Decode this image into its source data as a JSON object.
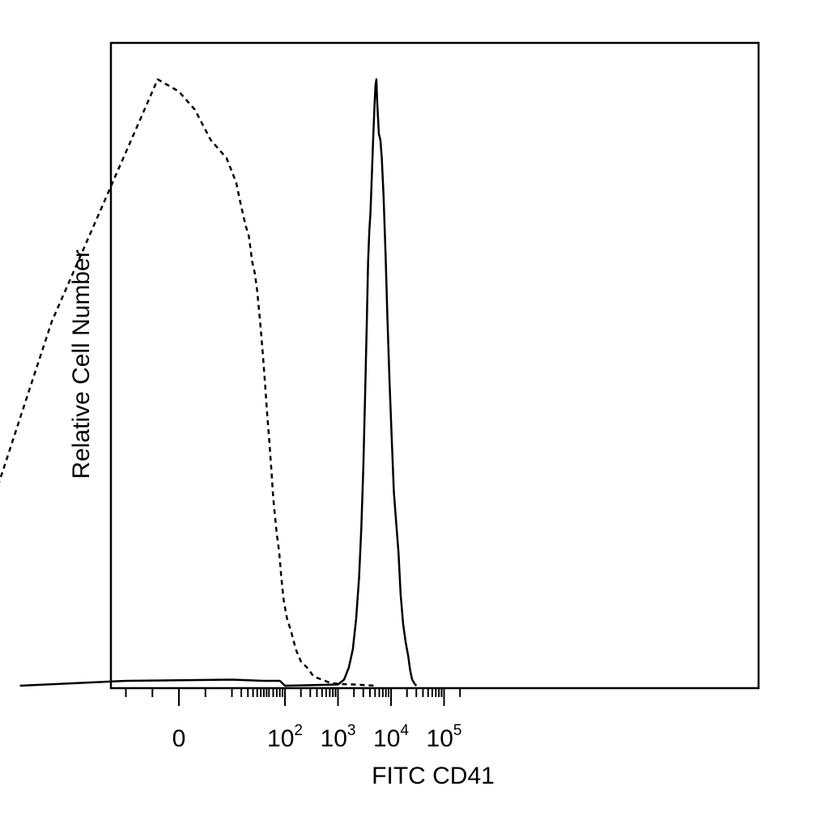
{
  "chart_data": {
    "type": "line",
    "title": "",
    "xlabel": "FITC CD41",
    "ylabel": "Relative Cell Number",
    "x_scale": "biexponential",
    "xlim": [
      -50,
      250000
    ],
    "ylim": [
      0,
      1
    ],
    "grid": false,
    "legend": "none",
    "major_ticks": [
      {
        "value": 0,
        "base": "0",
        "exp": ""
      },
      {
        "value": 100,
        "base": "10",
        "exp": "2"
      },
      {
        "value": 1000,
        "base": "10",
        "exp": "3"
      },
      {
        "value": 10000,
        "base": "10",
        "exp": "4"
      },
      {
        "value": 100000,
        "base": "10",
        "exp": "5"
      }
    ],
    "minor_ticks": [
      -45,
      -40,
      -35,
      -30,
      -25,
      -20,
      -15,
      -10,
      -5,
      5,
      10,
      15,
      20,
      25,
      30,
      35,
      40,
      45,
      50,
      60,
      70,
      80,
      90,
      200,
      300,
      400,
      500,
      600,
      700,
      800,
      900,
      2000,
      3000,
      4000,
      5000,
      6000,
      7000,
      8000,
      9000,
      20000,
      30000,
      40000,
      50000,
      60000,
      70000,
      80000,
      90000,
      200000
    ],
    "series": [
      {
        "style": "dashed",
        "color": "#000000",
        "points": [
          [
            -48,
            0.0
          ],
          [
            -45,
            0.05
          ],
          [
            -42,
            0.12
          ],
          [
            -39,
            0.2
          ],
          [
            -36,
            0.28
          ],
          [
            -33,
            0.36
          ],
          [
            -30,
            0.44
          ],
          [
            -27,
            0.52
          ],
          [
            -24,
            0.6
          ],
          [
            -21,
            0.66
          ],
          [
            -18,
            0.72
          ],
          [
            -15,
            0.78
          ],
          [
            -12,
            0.84
          ],
          [
            -9,
            0.9
          ],
          [
            -6,
            0.96
          ],
          [
            -4,
            1.0
          ],
          [
            0,
            0.98
          ],
          [
            3,
            0.95
          ],
          [
            6,
            0.9
          ],
          [
            9,
            0.87
          ],
          [
            12,
            0.83
          ],
          [
            15,
            0.79
          ],
          [
            18,
            0.76
          ],
          [
            21,
            0.74
          ],
          [
            24,
            0.7
          ],
          [
            27,
            0.68
          ],
          [
            30,
            0.65
          ],
          [
            34,
            0.6
          ],
          [
            38,
            0.55
          ],
          [
            42,
            0.5
          ],
          [
            46,
            0.45
          ],
          [
            50,
            0.41
          ],
          [
            55,
            0.36
          ],
          [
            60,
            0.31
          ],
          [
            65,
            0.28
          ],
          [
            70,
            0.25
          ],
          [
            78,
            0.22
          ],
          [
            85,
            0.18
          ],
          [
            95,
            0.14
          ],
          [
            110,
            0.11
          ],
          [
            130,
            0.09
          ],
          [
            160,
            0.06
          ],
          [
            200,
            0.04
          ],
          [
            260,
            0.03
          ],
          [
            350,
            0.015
          ],
          [
            500,
            0.01
          ],
          [
            700,
            0.005
          ],
          [
            1000,
            0.003
          ],
          [
            2000,
            0.002
          ],
          [
            5000,
            0.0
          ]
        ]
      },
      {
        "style": "solid",
        "color": "#000000",
        "points": [
          [
            -30,
            0.0
          ],
          [
            -10,
            0.008
          ],
          [
            10,
            0.01
          ],
          [
            40,
            0.008
          ],
          [
            80,
            0.008
          ],
          [
            100,
            0.0
          ],
          [
            1000,
            0.002
          ],
          [
            1300,
            0.01
          ],
          [
            1600,
            0.03
          ],
          [
            1900,
            0.06
          ],
          [
            2200,
            0.11
          ],
          [
            2500,
            0.18
          ],
          [
            2750,
            0.26
          ],
          [
            3000,
            0.36
          ],
          [
            3250,
            0.48
          ],
          [
            3500,
            0.6
          ],
          [
            3700,
            0.7
          ],
          [
            3900,
            0.75
          ],
          [
            4100,
            0.78
          ],
          [
            4300,
            0.83
          ],
          [
            4600,
            0.9
          ],
          [
            4900,
            0.96
          ],
          [
            5100,
            0.99
          ],
          [
            5300,
            1.0
          ],
          [
            5500,
            0.96
          ],
          [
            5900,
            0.91
          ],
          [
            6300,
            0.9
          ],
          [
            6700,
            0.87
          ],
          [
            7200,
            0.81
          ],
          [
            7900,
            0.71
          ],
          [
            8600,
            0.6
          ],
          [
            9400,
            0.5
          ],
          [
            10300,
            0.41
          ],
          [
            11300,
            0.32
          ],
          [
            12500,
            0.27
          ],
          [
            13800,
            0.22
          ],
          [
            15200,
            0.15
          ],
          [
            17000,
            0.1
          ],
          [
            19000,
            0.07
          ],
          [
            21000,
            0.05
          ],
          [
            23000,
            0.025
          ],
          [
            25000,
            0.01
          ],
          [
            28000,
            0.003
          ],
          [
            30000,
            0.0
          ]
        ]
      }
    ]
  }
}
